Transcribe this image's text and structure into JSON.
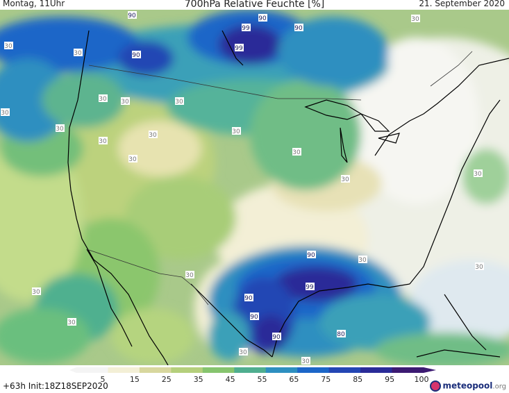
{
  "header": {
    "title": "700hPa Relative Feuchte [%]",
    "left_label": "Montag, 11Uhr",
    "right_label": "21. September 2020"
  },
  "footer": {
    "run_info": "+63h Init:18Z18SEP2020",
    "brand": "meteopool",
    "brand_suffix": ".org"
  },
  "legend": {
    "ticks": [
      "5",
      "15",
      "25",
      "35",
      "45",
      "55",
      "65",
      "75",
      "85",
      "95",
      "100"
    ],
    "colors": [
      "#f4f4f4",
      "#f3efd6",
      "#d8d79e",
      "#b5cf7c",
      "#86c46e",
      "#4fae8f",
      "#2d8fc0",
      "#1c66c8",
      "#2446b4",
      "#2a2b98",
      "#3c1a72"
    ],
    "arrow_color": "#3c1a72"
  },
  "contour_labels": [
    {
      "text": "90",
      "dark": true
    },
    {
      "text": "90",
      "dark": true
    },
    {
      "text": "90",
      "dark": true
    },
    {
      "text": "99",
      "dark": true
    },
    {
      "text": "99",
      "dark": true
    },
    {
      "text": "90",
      "dark": true
    },
    {
      "text": "30",
      "dark": false
    },
    {
      "text": "30",
      "dark": false
    },
    {
      "text": "30",
      "dark": false
    },
    {
      "text": "30",
      "dark": false
    },
    {
      "text": "30",
      "dark": false
    },
    {
      "text": "30",
      "dark": false
    },
    {
      "text": "30",
      "dark": false
    },
    {
      "text": "30",
      "dark": false
    },
    {
      "text": "30",
      "dark": false
    },
    {
      "text": "30",
      "dark": false
    },
    {
      "text": "30",
      "dark": false
    },
    {
      "text": "30",
      "dark": false
    },
    {
      "text": "30",
      "dark": false
    },
    {
      "text": "30",
      "dark": false
    },
    {
      "text": "30",
      "dark": false
    },
    {
      "text": "30",
      "dark": false
    },
    {
      "text": "90",
      "dark": true
    },
    {
      "text": "99",
      "dark": true
    },
    {
      "text": "90",
      "dark": true
    },
    {
      "text": "90",
      "dark": true
    },
    {
      "text": "90",
      "dark": true
    },
    {
      "text": "80",
      "dark": true
    },
    {
      "text": "30",
      "dark": false
    },
    {
      "text": "30",
      "dark": false
    },
    {
      "text": "30",
      "dark": false
    },
    {
      "text": "30",
      "dark": false
    },
    {
      "text": "30",
      "dark": false
    },
    {
      "text": "30",
      "dark": false
    }
  ]
}
